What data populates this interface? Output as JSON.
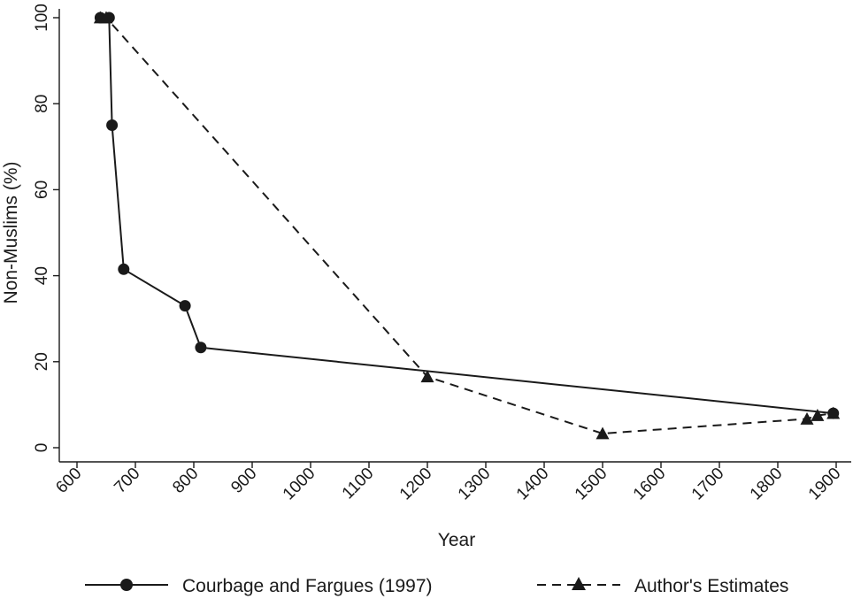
{
  "chart_data": {
    "type": "line",
    "title": "",
    "xlabel": "Year",
    "ylabel": "Non-Muslims (%)",
    "xlim": [
      600,
      1900
    ],
    "ylim": [
      0,
      100
    ],
    "x_ticks": [
      "600",
      "700",
      "800",
      "900",
      "1000",
      "1100",
      "1200",
      "1300",
      "1400",
      "1500",
      "1600",
      "1700",
      "1800",
      "1900"
    ],
    "y_ticks": [
      "0",
      "20",
      "40",
      "60",
      "80",
      "100"
    ],
    "grid": false,
    "legend_position": "bottom",
    "series": [
      {
        "name": "Courbage and Fargues (1997)",
        "style": "solid",
        "marker": "circle",
        "color": "#1a1a1a",
        "x": [
          640,
          655,
          660,
          680,
          785,
          812,
          1895
        ],
        "y": [
          100,
          100,
          75,
          41.5,
          33,
          23.3,
          8
        ]
      },
      {
        "name": "Author's Estimates",
        "style": "dashed",
        "marker": "triangle",
        "color": "#1a1a1a",
        "x": [
          640,
          650,
          1200,
          1500,
          1850,
          1868,
          1895
        ],
        "y": [
          100,
          100,
          16.5,
          3.3,
          6.7,
          7.5,
          8
        ]
      }
    ]
  }
}
